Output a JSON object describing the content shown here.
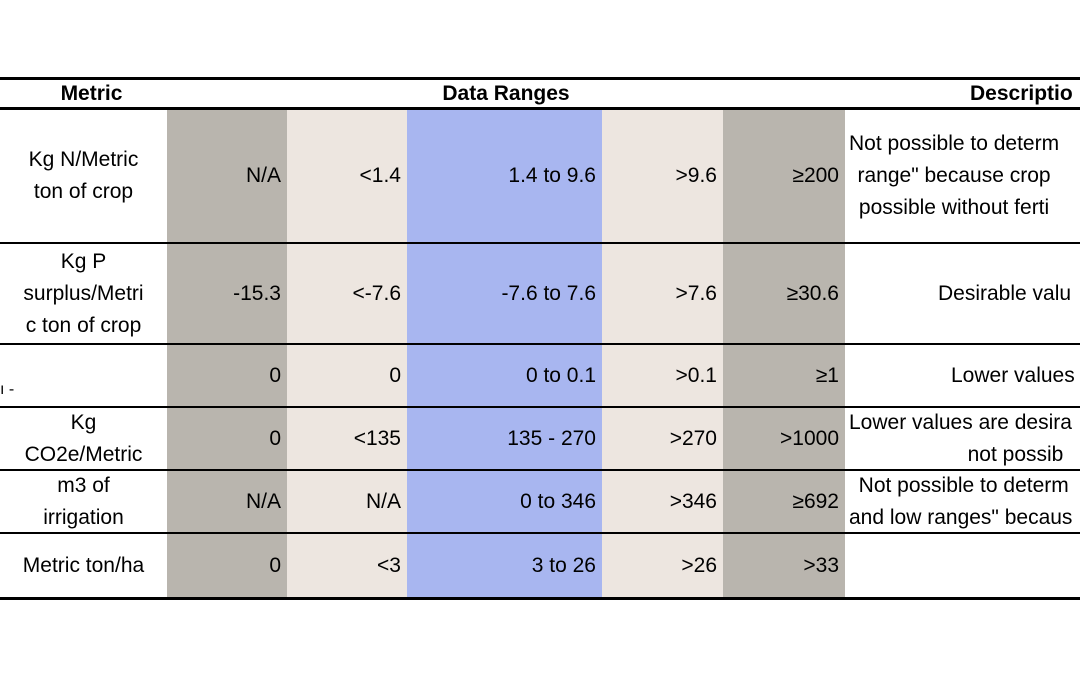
{
  "header": {
    "metric": "Metric",
    "ranges": "Data Ranges",
    "description": "Descriptio"
  },
  "rows": [
    {
      "metric": [
        "Kg N/Metric",
        "ton of crop"
      ],
      "v1": "N/A",
      "v2": "<1.4",
      "v3": "1.4 to 9.6",
      "v4": ">9.6",
      "v5": "≥200",
      "desc": [
        "Not possible to determ",
        "range\" because crop",
        "possible without ferti"
      ]
    },
    {
      "metric": [
        "Kg P",
        "surplus/Metri",
        "c ton of crop"
      ],
      "v1": "-15.3",
      "v2": "<-7.6",
      "v3": "-7.6 to 7.6",
      "v4": ">7.6",
      "v5": "≥30.6",
      "desc": [
        "Desirable valu"
      ]
    },
    {
      "metric": [],
      "v1": "0",
      "v2": "0",
      "v3": "0 to 0.1",
      "v4": ">0.1",
      "v5": "≥1",
      "desc": [
        "Lower values"
      ]
    },
    {
      "metric": [
        "Kg",
        "CO2e/Metric"
      ],
      "v1": "0",
      "v2": "<135",
      "v3": "135 - 270",
      "v4": ">270",
      "v5": ">1000",
      "desc": [
        "Lower values are desira",
        "not possib"
      ]
    },
    {
      "metric": [
        "m3 of",
        "irrigation"
      ],
      "v1": "N/A",
      "v2": "N/A",
      "v3": "0 to 346",
      "v4": ">346",
      "v5": "≥692",
      "desc": [
        "Not possible to determ",
        "and low ranges\" becaus"
      ]
    },
    {
      "metric": [
        "Metric ton/ha"
      ],
      "v1": "0",
      "v2": "<3",
      "v3": "3 to 26",
      "v4": ">26",
      "v5": ">33",
      "desc": []
    }
  ],
  "stray_fragment": "ı -"
}
